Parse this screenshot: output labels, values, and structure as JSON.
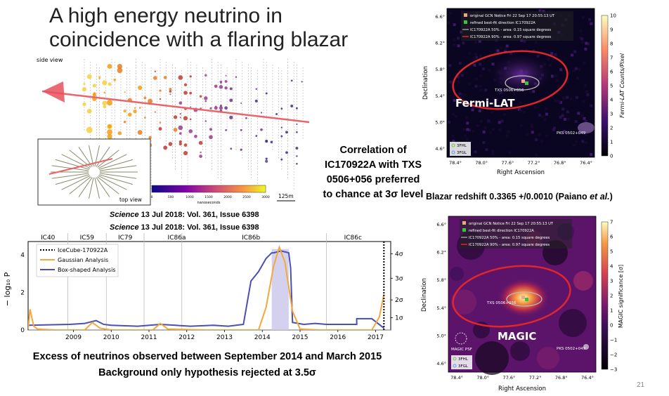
{
  "slide": {
    "title_line1": "A high energy neutrino in",
    "title_line2": "coincidence with a flaring blazar",
    "page_number": "21"
  },
  "event_display": {
    "side_view_label": "side view",
    "top_view_label": "top view",
    "colorbar_label": "nanoseconds",
    "colorbar_ticks": [
      "0",
      "500",
      "1000",
      "1500",
      "2000",
      "2500",
      "3000"
    ],
    "scale_label": "125m"
  },
  "correlation": {
    "line1": "Correlation of",
    "line2": "IC170922A with TXS",
    "line3": "0506+056 preferred",
    "line4": "to chance at 3σ level"
  },
  "science_refs": {
    "journal": "Science",
    "ref1": " 13 Jul 2018: Vol. 361, Issue 6398",
    "ref2": " 13 Jul 2018: Vol. 361, Issue 6398"
  },
  "excess": {
    "line1": "Excess of neutrinos observed between September 2014 and March 2015",
    "line2": "Background only hypothesis rejected at 3.5σ"
  },
  "blazar": {
    "text": "Blazar redshift 0.3365 +/0.0010 (Paiano ",
    "etal": "et al.",
    "close": ")"
  },
  "chart_data": [
    {
      "type": "line",
      "ylabel": "− log₁₀ P",
      "x_ticks": [
        "2009",
        "2010",
        "2011",
        "2012",
        "2013",
        "2014",
        "2015",
        "2016",
        "2017"
      ],
      "y_left_ticks": [
        "0",
        "2",
        "4"
      ],
      "y_right_ticks": [
        "1σ",
        "2σ",
        "3σ",
        "4σ"
      ],
      "xlim": [
        2008.3,
        2017.9
      ],
      "ylim": [
        0,
        4.7
      ],
      "seasons": [
        "IC40",
        "IC59",
        "IC79",
        "IC86a",
        "IC86b",
        "IC86c"
      ],
      "season_boundaries": [
        2009.35,
        2010.37,
        2011.37,
        2012.37,
        2016.2
      ],
      "legend": [
        "IceCube-170922A",
        "Gaussian Analysis",
        "Box-shaped Analysis"
      ],
      "event_x": 2017.72,
      "series": [
        {
          "name": "Box-shaped Analysis",
          "color": "#4b4fb0",
          "x": [
            2008.3,
            2009.4,
            2009.8,
            2010.1,
            2010.3,
            2010.5,
            2011.2,
            2011.8,
            2012.2,
            2012.6,
            2013.2,
            2013.6,
            2014.0,
            2014.2,
            2014.4,
            2014.6,
            2014.75,
            2014.8,
            2015.0,
            2015.2,
            2015.25,
            2015.3,
            2015.6,
            2015.9,
            2016.2,
            2016.6,
            2017.0,
            2017.0,
            2017.4,
            2017.72
          ],
          "y": [
            0.25,
            0.3,
            0.35,
            0.5,
            0.3,
            0.25,
            0.2,
            0.3,
            0.25,
            0.2,
            0.25,
            0.2,
            0.3,
            2.6,
            3.1,
            3.8,
            4.1,
            4.1,
            4.2,
            4.1,
            3.3,
            0.4,
            0.3,
            0.35,
            0.3,
            0.3,
            0.3,
            0.6,
            0.6,
            0.1
          ]
        },
        {
          "name": "Gaussian Analysis",
          "color": "#f2a83b",
          "x": [
            2008.3,
            2008.35,
            2008.45,
            2008.55,
            2009.0,
            2009.8,
            2010.0,
            2010.2,
            2010.5,
            2011.6,
            2011.8,
            2012.0,
            2013.0,
            2014.4,
            2014.6,
            2014.8,
            2014.95,
            2015.1,
            2015.3,
            2015.5,
            2016.0,
            2017.4,
            2017.6,
            2017.72
          ],
          "y": [
            0.05,
            1.1,
            0.2,
            0.05,
            0.0,
            0.0,
            0.4,
            0.1,
            0.0,
            0.0,
            0.35,
            0.05,
            0.0,
            0.0,
            1.2,
            3.4,
            4.4,
            3.6,
            1.0,
            0.05,
            0.0,
            0.0,
            0.7,
            1.9
          ]
        }
      ]
    },
    {
      "type": "heatmap",
      "name": "Fermi-LAT",
      "label": "Fermi-LAT",
      "xlabel": "Right Ascension",
      "ylabel": "Declination",
      "x_ticks": [
        "78.4°",
        "78.0°",
        "77.6°",
        "77.2°",
        "76.8°",
        "76.4°"
      ],
      "y_ticks": [
        "6.6°",
        "6.2°",
        "5.8°",
        "5.4°",
        "5.0°",
        "4.6°"
      ],
      "colorbar_label": "Fermi-LAT Counts/Pixel",
      "colorbar_ticks": [
        "0",
        "1",
        "2",
        "3",
        "4",
        "5",
        "6",
        "7",
        "8",
        "9",
        "10"
      ],
      "legend": [
        "original GCN Notice Fri 22 Sep 17 20:55:13 UT",
        "refined best-fit direction IC170922A",
        "IC170922A 50% - area: 0.15 square degrees",
        "IC170922A 90% - area: 0.97 square degrees"
      ],
      "legend2": [
        "3FHL",
        "3FGL"
      ],
      "source_labels": [
        "TXS 0506+056",
        "PKS 0502+049"
      ]
    },
    {
      "type": "heatmap",
      "name": "MAGIC",
      "label": "MAGIC",
      "xlabel": "Right Ascension",
      "ylabel": "Declination",
      "x_ticks": [
        "78.4°",
        "78.0°",
        "77.6°",
        "77.2°",
        "76.8°",
        "76.4°"
      ],
      "y_ticks": [
        "6.6°",
        "6.2°",
        "5.8°",
        "5.4°",
        "5.0°",
        "4.6°"
      ],
      "colorbar_label": "MAGIC significance [σ]",
      "colorbar_ticks": [
        "−3",
        "−2",
        "−1",
        "0",
        "1",
        "2",
        "3",
        "4",
        "5",
        "6",
        "7"
      ],
      "legend": [
        "original GCN Notice Fri 22 Sep 17 20:55:13 UT",
        "refined best-fit direction IC170922A",
        "IC170922A 50% - area: 0.15 square degrees",
        "IC170922A 90% - area: 0.97 square degrees"
      ],
      "legend2": [
        "3FHL",
        "3FGL"
      ],
      "source_labels": [
        "TXS 0506+056",
        "PKS 0502+049"
      ],
      "psf_label": "MAGIC PSF"
    }
  ]
}
